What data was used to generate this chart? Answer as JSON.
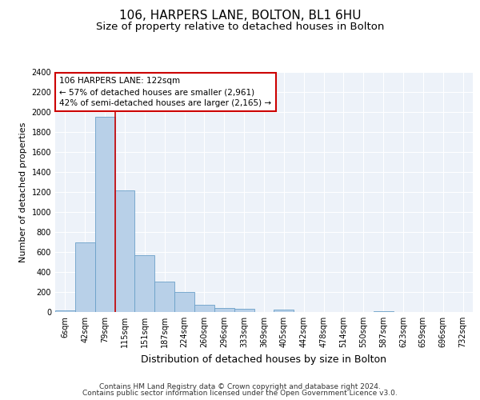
{
  "title": "106, HARPERS LANE, BOLTON, BL1 6HU",
  "subtitle": "Size of property relative to detached houses in Bolton",
  "xlabel": "Distribution of detached houses by size in Bolton",
  "ylabel": "Number of detached properties",
  "bar_color": "#b8d0e8",
  "bar_edge_color": "#6aa0c8",
  "categories": [
    "6sqm",
    "42sqm",
    "79sqm",
    "115sqm",
    "151sqm",
    "187sqm",
    "224sqm",
    "260sqm",
    "296sqm",
    "333sqm",
    "369sqm",
    "405sqm",
    "442sqm",
    "478sqm",
    "514sqm",
    "550sqm",
    "587sqm",
    "623sqm",
    "659sqm",
    "696sqm",
    "732sqm"
  ],
  "values": [
    15,
    695,
    1950,
    1220,
    565,
    305,
    200,
    70,
    40,
    30,
    0,
    28,
    0,
    0,
    0,
    0,
    12,
    0,
    0,
    0,
    0
  ],
  "ylim": [
    0,
    2400
  ],
  "yticks": [
    0,
    200,
    400,
    600,
    800,
    1000,
    1200,
    1400,
    1600,
    1800,
    2000,
    2200,
    2400
  ],
  "vline_color": "#cc0000",
  "vline_pos": 2.5,
  "annotation_title": "106 HARPERS LANE: 122sqm",
  "annotation_line1": "← 57% of detached houses are smaller (2,961)",
  "annotation_line2": "42% of semi-detached houses are larger (2,165) →",
  "annotation_box_color": "#ffffff",
  "annotation_box_edgecolor": "#cc0000",
  "footer_line1": "Contains HM Land Registry data © Crown copyright and database right 2024.",
  "footer_line2": "Contains public sector information licensed under the Open Government Licence v3.0.",
  "background_color": "#edf2f9",
  "grid_color": "#ffffff",
  "title_fontsize": 11,
  "subtitle_fontsize": 9.5,
  "ylabel_fontsize": 8,
  "xlabel_fontsize": 9,
  "tick_fontsize": 7,
  "annotation_fontsize": 7.5,
  "footer_fontsize": 6.5
}
